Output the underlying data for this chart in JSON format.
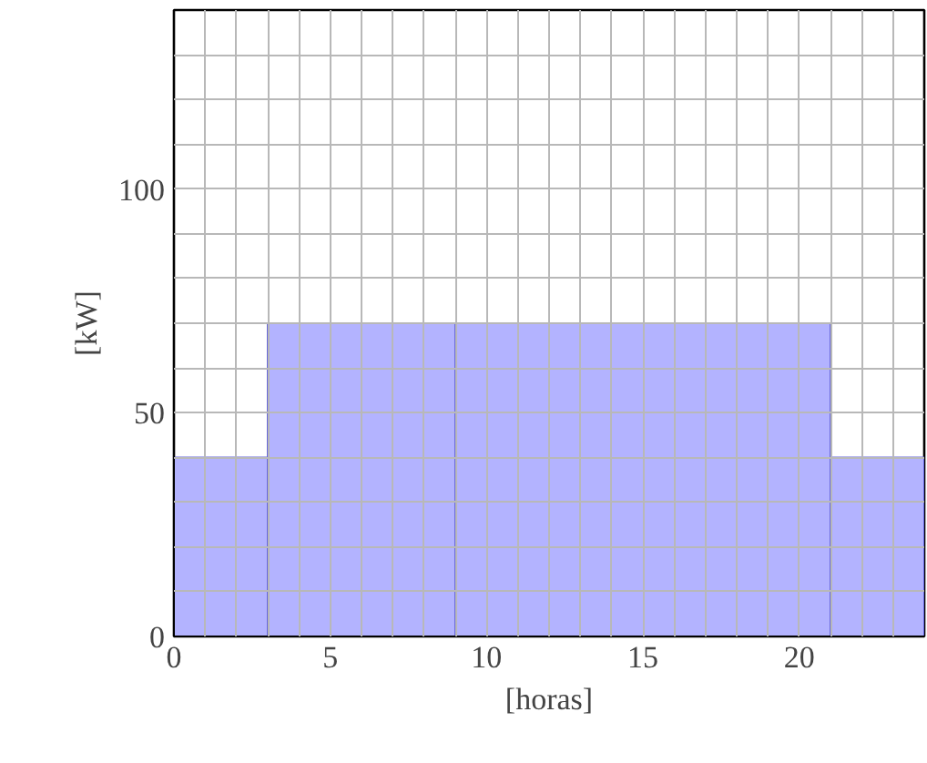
{
  "chart_data": {
    "type": "histogram",
    "xlabel": "[horas]",
    "ylabel": "[kW]",
    "bins": [
      0,
      3,
      9,
      21,
      24
    ],
    "values": [
      40,
      70,
      70,
      40
    ],
    "color": "#b3b3ff",
    "xlim": [
      0,
      24
    ],
    "ylim": [
      0,
      140
    ],
    "xticks": [
      0,
      {
        "value": 1,
        "label": null
      },
      {
        "value": 2,
        "label": null
      },
      {
        "value": 3,
        "label": null
      },
      {
        "value": 4,
        "label": null
      },
      5,
      {
        "value": 6,
        "label": null
      },
      {
        "value": 7,
        "label": null
      },
      {
        "value": 8,
        "label": null
      },
      {
        "value": 9,
        "label": null
      },
      10,
      {
        "value": 11,
        "label": null
      },
      {
        "value": 12,
        "label": null
      },
      {
        "value": 13,
        "label": null
      },
      {
        "value": 14,
        "label": null
      },
      15,
      {
        "value": 16,
        "label": null
      },
      {
        "value": 17,
        "label": null
      },
      {
        "value": 18,
        "label": null
      },
      {
        "value": 19,
        "label": null
      },
      20,
      {
        "value": 21,
        "label": null
      },
      {
        "value": 22,
        "label": null
      },
      {
        "value": 23,
        "label": null
      }
    ],
    "yticks": [
      0,
      {
        "value": 10,
        "label": null
      },
      {
        "value": 20,
        "label": null
      },
      {
        "value": 30,
        "label": null
      },
      {
        "value": 40,
        "label": null
      },
      50,
      {
        "value": 60,
        "label": null
      },
      {
        "value": 70,
        "label": null
      },
      {
        "value": 80,
        "label": null
      },
      {
        "value": 90,
        "label": null
      },
      100,
      {
        "value": 110,
        "label": null
      },
      {
        "value": 120,
        "label": null
      },
      {
        "value": 130,
        "label": null
      }
    ],
    "grid": true
  }
}
